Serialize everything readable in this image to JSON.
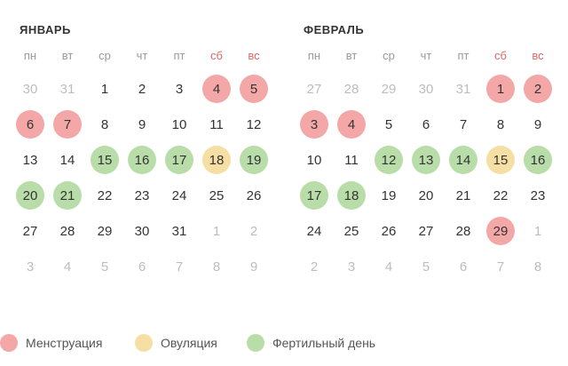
{
  "colors": {
    "menstruation": "#f4a7a7",
    "ovulation": "#f6dfa4",
    "fertile": "#b9dda9",
    "weekend_header": "#d86a6a",
    "muted_day": "#bdbdbd"
  },
  "months": [
    {
      "title": "ЯНВАРЬ",
      "weekdays": [
        "пн",
        "вт",
        "ср",
        "чт",
        "пт",
        "сб",
        "вс"
      ],
      "weeks": [
        [
          {
            "d": "30",
            "t": "muted"
          },
          {
            "d": "31",
            "t": "muted"
          },
          {
            "d": "1",
            "t": ""
          },
          {
            "d": "2",
            "t": ""
          },
          {
            "d": "3",
            "t": ""
          },
          {
            "d": "4",
            "t": "mens"
          },
          {
            "d": "5",
            "t": "mens"
          }
        ],
        [
          {
            "d": "6",
            "t": "mens"
          },
          {
            "d": "7",
            "t": "mens"
          },
          {
            "d": "8",
            "t": ""
          },
          {
            "d": "9",
            "t": ""
          },
          {
            "d": "10",
            "t": ""
          },
          {
            "d": "11",
            "t": ""
          },
          {
            "d": "12",
            "t": ""
          }
        ],
        [
          {
            "d": "13",
            "t": ""
          },
          {
            "d": "14",
            "t": ""
          },
          {
            "d": "15",
            "t": "fert"
          },
          {
            "d": "16",
            "t": "fert"
          },
          {
            "d": "17",
            "t": "fert"
          },
          {
            "d": "18",
            "t": "ovul"
          },
          {
            "d": "19",
            "t": "fert"
          }
        ],
        [
          {
            "d": "20",
            "t": "fert"
          },
          {
            "d": "21",
            "t": "fert"
          },
          {
            "d": "22",
            "t": ""
          },
          {
            "d": "23",
            "t": ""
          },
          {
            "d": "24",
            "t": ""
          },
          {
            "d": "25",
            "t": ""
          },
          {
            "d": "26",
            "t": ""
          }
        ],
        [
          {
            "d": "27",
            "t": ""
          },
          {
            "d": "28",
            "t": ""
          },
          {
            "d": "29",
            "t": ""
          },
          {
            "d": "30",
            "t": ""
          },
          {
            "d": "31",
            "t": ""
          },
          {
            "d": "1",
            "t": "muted"
          },
          {
            "d": "2",
            "t": "muted"
          }
        ],
        [
          {
            "d": "3",
            "t": "muted"
          },
          {
            "d": "4",
            "t": "muted"
          },
          {
            "d": "5",
            "t": "muted"
          },
          {
            "d": "6",
            "t": "muted"
          },
          {
            "d": "7",
            "t": "muted"
          },
          {
            "d": "8",
            "t": "muted"
          },
          {
            "d": "9",
            "t": "muted"
          }
        ]
      ]
    },
    {
      "title": "ФЕВРАЛЬ",
      "weekdays": [
        "пн",
        "вт",
        "ср",
        "чт",
        "пт",
        "сб",
        "вс"
      ],
      "weeks": [
        [
          {
            "d": "27",
            "t": "muted"
          },
          {
            "d": "28",
            "t": "muted"
          },
          {
            "d": "29",
            "t": "muted"
          },
          {
            "d": "30",
            "t": "muted"
          },
          {
            "d": "31",
            "t": "muted"
          },
          {
            "d": "1",
            "t": "mens"
          },
          {
            "d": "2",
            "t": "mens"
          }
        ],
        [
          {
            "d": "3",
            "t": "mens"
          },
          {
            "d": "4",
            "t": "mens"
          },
          {
            "d": "5",
            "t": ""
          },
          {
            "d": "6",
            "t": ""
          },
          {
            "d": "7",
            "t": ""
          },
          {
            "d": "8",
            "t": ""
          },
          {
            "d": "9",
            "t": ""
          }
        ],
        [
          {
            "d": "10",
            "t": ""
          },
          {
            "d": "11",
            "t": ""
          },
          {
            "d": "12",
            "t": "fert"
          },
          {
            "d": "13",
            "t": "fert"
          },
          {
            "d": "14",
            "t": "fert"
          },
          {
            "d": "15",
            "t": "ovul"
          },
          {
            "d": "16",
            "t": "fert"
          }
        ],
        [
          {
            "d": "17",
            "t": "fert"
          },
          {
            "d": "18",
            "t": "fert"
          },
          {
            "d": "19",
            "t": ""
          },
          {
            "d": "20",
            "t": ""
          },
          {
            "d": "21",
            "t": ""
          },
          {
            "d": "22",
            "t": ""
          },
          {
            "d": "23",
            "t": ""
          }
        ],
        [
          {
            "d": "24",
            "t": ""
          },
          {
            "d": "25",
            "t": ""
          },
          {
            "d": "26",
            "t": ""
          },
          {
            "d": "27",
            "t": ""
          },
          {
            "d": "28",
            "t": ""
          },
          {
            "d": "29",
            "t": "mens"
          },
          {
            "d": "1",
            "t": "muted"
          }
        ],
        [
          {
            "d": "2",
            "t": "muted"
          },
          {
            "d": "3",
            "t": "muted"
          },
          {
            "d": "4",
            "t": "muted"
          },
          {
            "d": "5",
            "t": "muted"
          },
          {
            "d": "6",
            "t": "muted"
          },
          {
            "d": "7",
            "t": "muted"
          },
          {
            "d": "8",
            "t": "muted"
          }
        ]
      ]
    }
  ],
  "legend": [
    {
      "label": "Менструация",
      "type": "mens"
    },
    {
      "label": "Овуляция",
      "type": "ovul"
    },
    {
      "label": "Фертильный день",
      "type": "fert"
    }
  ]
}
